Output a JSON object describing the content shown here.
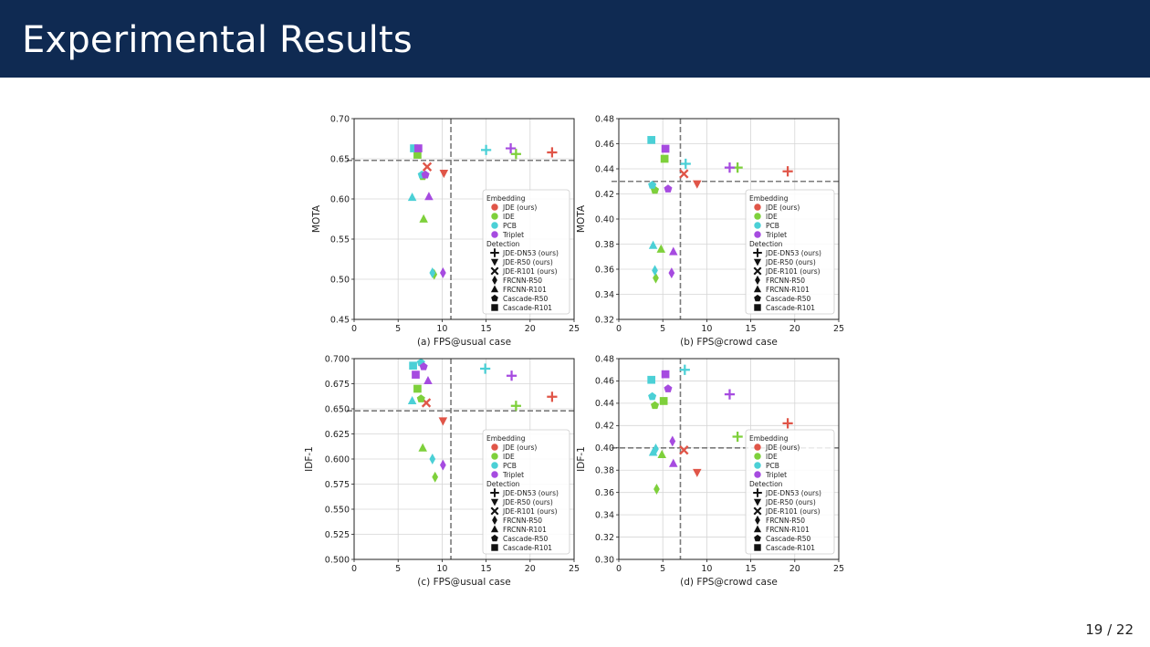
{
  "slide": {
    "title": "Experimental Results",
    "page_number": "19 / 22"
  },
  "colors": {
    "title_bar": "#0f2a52",
    "JDE": "#e05548",
    "IDE": "#7ed03b",
    "PCB": "#4bd0d6",
    "Triplet": "#a64be0"
  },
  "legend": {
    "embedding_title": "Embedding",
    "embedding": [
      {
        "label": "JDE (ours)",
        "key": "JDE"
      },
      {
        "label": "IDE",
        "key": "IDE"
      },
      {
        "label": "PCB",
        "key": "PCB"
      },
      {
        "label": "Triplet",
        "key": "Triplet"
      }
    ],
    "detection_title": "Detection",
    "detection": [
      {
        "label": "JDE-DN53 (ours)",
        "marker": "plus"
      },
      {
        "label": "JDE-R50 (ours)",
        "marker": "tri-down"
      },
      {
        "label": "JDE-R101 (ours)",
        "marker": "x"
      },
      {
        "label": "FRCNN-R50",
        "marker": "diamond"
      },
      {
        "label": "FRCNN-R101",
        "marker": "tri-up"
      },
      {
        "label": "Cascade-R50",
        "marker": "pentagon"
      },
      {
        "label": "Cascade-R101",
        "marker": "square"
      }
    ]
  },
  "chart_data": [
    {
      "type": "scatter",
      "subtitle": "(a) FPS@usual case",
      "ylabel": "MOTA",
      "xlim": [
        0,
        25
      ],
      "ylim": [
        0.45,
        0.7
      ],
      "xticks": [
        "0",
        "5",
        "10",
        "15",
        "20",
        "25"
      ],
      "yticks": [
        "0.45",
        "0.50",
        "0.55",
        "0.60",
        "0.65",
        "0.70"
      ],
      "vline": 11,
      "hline": 0.648,
      "legend_position": "right",
      "points": [
        {
          "x": 22.5,
          "y": 0.658,
          "e": "JDE",
          "d": "plus"
        },
        {
          "x": 10.2,
          "y": 0.632,
          "e": "JDE",
          "d": "tri-down"
        },
        {
          "x": 8.3,
          "y": 0.64,
          "e": "JDE",
          "d": "x"
        },
        {
          "x": 18.4,
          "y": 0.656,
          "e": "IDE",
          "d": "plus"
        },
        {
          "x": 7.2,
          "y": 0.655,
          "e": "IDE",
          "d": "square"
        },
        {
          "x": 7.8,
          "y": 0.628,
          "e": "IDE",
          "d": "pentagon"
        },
        {
          "x": 7.9,
          "y": 0.575,
          "e": "IDE",
          "d": "tri-up"
        },
        {
          "x": 9.1,
          "y": 0.506,
          "e": "IDE",
          "d": "diamond"
        },
        {
          "x": 15.0,
          "y": 0.661,
          "e": "PCB",
          "d": "plus"
        },
        {
          "x": 6.8,
          "y": 0.663,
          "e": "PCB",
          "d": "square"
        },
        {
          "x": 7.7,
          "y": 0.63,
          "e": "PCB",
          "d": "pentagon"
        },
        {
          "x": 6.6,
          "y": 0.602,
          "e": "PCB",
          "d": "tri-up"
        },
        {
          "x": 8.9,
          "y": 0.508,
          "e": "PCB",
          "d": "diamond"
        },
        {
          "x": 17.8,
          "y": 0.663,
          "e": "Triplet",
          "d": "plus"
        },
        {
          "x": 7.3,
          "y": 0.663,
          "e": "Triplet",
          "d": "square"
        },
        {
          "x": 8.1,
          "y": 0.63,
          "e": "Triplet",
          "d": "pentagon"
        },
        {
          "x": 8.5,
          "y": 0.603,
          "e": "Triplet",
          "d": "tri-up"
        },
        {
          "x": 10.1,
          "y": 0.508,
          "e": "Triplet",
          "d": "diamond"
        }
      ]
    },
    {
      "type": "scatter",
      "subtitle": "(b) FPS@crowd case",
      "ylabel": "MOTA",
      "xlim": [
        0,
        25
      ],
      "ylim": [
        0.32,
        0.48
      ],
      "xticks": [
        "0",
        "5",
        "10",
        "15",
        "20",
        "25"
      ],
      "yticks": [
        "0.32",
        "0.34",
        "0.36",
        "0.38",
        "0.40",
        "0.42",
        "0.44",
        "0.46",
        "0.48"
      ],
      "vline": 7,
      "hline": 0.43,
      "legend_position": "right",
      "points": [
        {
          "x": 19.2,
          "y": 0.438,
          "e": "JDE",
          "d": "plus"
        },
        {
          "x": 8.9,
          "y": 0.428,
          "e": "JDE",
          "d": "tri-down"
        },
        {
          "x": 7.4,
          "y": 0.436,
          "e": "JDE",
          "d": "x"
        },
        {
          "x": 13.5,
          "y": 0.441,
          "e": "IDE",
          "d": "plus"
        },
        {
          "x": 5.2,
          "y": 0.448,
          "e": "IDE",
          "d": "square"
        },
        {
          "x": 4.1,
          "y": 0.423,
          "e": "IDE",
          "d": "pentagon"
        },
        {
          "x": 4.8,
          "y": 0.376,
          "e": "IDE",
          "d": "tri-up"
        },
        {
          "x": 4.2,
          "y": 0.353,
          "e": "IDE",
          "d": "diamond"
        },
        {
          "x": 7.6,
          "y": 0.444,
          "e": "PCB",
          "d": "plus"
        },
        {
          "x": 3.7,
          "y": 0.463,
          "e": "PCB",
          "d": "square"
        },
        {
          "x": 3.8,
          "y": 0.427,
          "e": "PCB",
          "d": "pentagon"
        },
        {
          "x": 3.9,
          "y": 0.379,
          "e": "PCB",
          "d": "tri-up"
        },
        {
          "x": 4.1,
          "y": 0.359,
          "e": "PCB",
          "d": "diamond"
        },
        {
          "x": 12.6,
          "y": 0.441,
          "e": "Triplet",
          "d": "plus"
        },
        {
          "x": 5.3,
          "y": 0.456,
          "e": "Triplet",
          "d": "square"
        },
        {
          "x": 5.6,
          "y": 0.424,
          "e": "Triplet",
          "d": "pentagon"
        },
        {
          "x": 6.2,
          "y": 0.374,
          "e": "Triplet",
          "d": "tri-up"
        },
        {
          "x": 6.0,
          "y": 0.357,
          "e": "Triplet",
          "d": "diamond"
        }
      ]
    },
    {
      "type": "scatter",
      "subtitle": "(c) FPS@usual case",
      "ylabel": "IDF-1",
      "xlim": [
        0,
        25
      ],
      "ylim": [
        0.5,
        0.7
      ],
      "xticks": [
        "0",
        "5",
        "10",
        "15",
        "20",
        "25"
      ],
      "yticks": [
        "0.500",
        "0.525",
        "0.550",
        "0.575",
        "0.600",
        "0.625",
        "0.650",
        "0.675",
        "0.700"
      ],
      "vline": 11,
      "hline": 0.648,
      "legend_position": "right",
      "points": [
        {
          "x": 22.5,
          "y": 0.662,
          "e": "JDE",
          "d": "plus"
        },
        {
          "x": 10.1,
          "y": 0.638,
          "e": "JDE",
          "d": "tri-down"
        },
        {
          "x": 8.2,
          "y": 0.656,
          "e": "JDE",
          "d": "x"
        },
        {
          "x": 18.4,
          "y": 0.653,
          "e": "IDE",
          "d": "plus"
        },
        {
          "x": 7.2,
          "y": 0.67,
          "e": "IDE",
          "d": "square"
        },
        {
          "x": 7.6,
          "y": 0.66,
          "e": "IDE",
          "d": "pentagon"
        },
        {
          "x": 7.8,
          "y": 0.611,
          "e": "IDE",
          "d": "tri-up"
        },
        {
          "x": 9.2,
          "y": 0.582,
          "e": "IDE",
          "d": "diamond"
        },
        {
          "x": 14.9,
          "y": 0.69,
          "e": "PCB",
          "d": "plus"
        },
        {
          "x": 6.7,
          "y": 0.693,
          "e": "PCB",
          "d": "square"
        },
        {
          "x": 7.6,
          "y": 0.696,
          "e": "PCB",
          "d": "pentagon"
        },
        {
          "x": 6.6,
          "y": 0.658,
          "e": "PCB",
          "d": "tri-up"
        },
        {
          "x": 8.9,
          "y": 0.6,
          "e": "PCB",
          "d": "diamond"
        },
        {
          "x": 17.9,
          "y": 0.683,
          "e": "Triplet",
          "d": "plus"
        },
        {
          "x": 7.0,
          "y": 0.684,
          "e": "Triplet",
          "d": "square"
        },
        {
          "x": 7.9,
          "y": 0.692,
          "e": "Triplet",
          "d": "pentagon"
        },
        {
          "x": 8.4,
          "y": 0.678,
          "e": "Triplet",
          "d": "tri-up"
        },
        {
          "x": 10.1,
          "y": 0.594,
          "e": "Triplet",
          "d": "diamond"
        }
      ]
    },
    {
      "type": "scatter",
      "subtitle": "(d) FPS@crowd case",
      "ylabel": "IDF-1",
      "xlim": [
        0,
        25
      ],
      "ylim": [
        0.3,
        0.48
      ],
      "xticks": [
        "0",
        "5",
        "10",
        "15",
        "20",
        "25"
      ],
      "yticks": [
        "0.30",
        "0.32",
        "0.34",
        "0.36",
        "0.38",
        "0.40",
        "0.42",
        "0.44",
        "0.46",
        "0.48"
      ],
      "vline": 7,
      "hline": 0.4,
      "legend_position": "right",
      "points": [
        {
          "x": 19.2,
          "y": 0.422,
          "e": "JDE",
          "d": "plus"
        },
        {
          "x": 8.9,
          "y": 0.378,
          "e": "JDE",
          "d": "tri-down"
        },
        {
          "x": 7.4,
          "y": 0.398,
          "e": "JDE",
          "d": "x"
        },
        {
          "x": 13.5,
          "y": 0.41,
          "e": "IDE",
          "d": "plus"
        },
        {
          "x": 5.1,
          "y": 0.442,
          "e": "IDE",
          "d": "square"
        },
        {
          "x": 4.1,
          "y": 0.438,
          "e": "IDE",
          "d": "pentagon"
        },
        {
          "x": 4.9,
          "y": 0.394,
          "e": "IDE",
          "d": "tri-up"
        },
        {
          "x": 4.3,
          "y": 0.363,
          "e": "IDE",
          "d": "diamond"
        },
        {
          "x": 7.5,
          "y": 0.47,
          "e": "PCB",
          "d": "plus"
        },
        {
          "x": 3.7,
          "y": 0.461,
          "e": "PCB",
          "d": "square"
        },
        {
          "x": 3.8,
          "y": 0.446,
          "e": "PCB",
          "d": "pentagon"
        },
        {
          "x": 3.9,
          "y": 0.396,
          "e": "PCB",
          "d": "tri-up"
        },
        {
          "x": 4.2,
          "y": 0.399,
          "e": "PCB",
          "d": "diamond"
        },
        {
          "x": 12.6,
          "y": 0.448,
          "e": "Triplet",
          "d": "plus"
        },
        {
          "x": 5.3,
          "y": 0.466,
          "e": "Triplet",
          "d": "square"
        },
        {
          "x": 5.6,
          "y": 0.453,
          "e": "Triplet",
          "d": "pentagon"
        },
        {
          "x": 6.2,
          "y": 0.386,
          "e": "Triplet",
          "d": "tri-up"
        },
        {
          "x": 6.1,
          "y": 0.406,
          "e": "Triplet",
          "d": "diamond"
        }
      ]
    }
  ]
}
